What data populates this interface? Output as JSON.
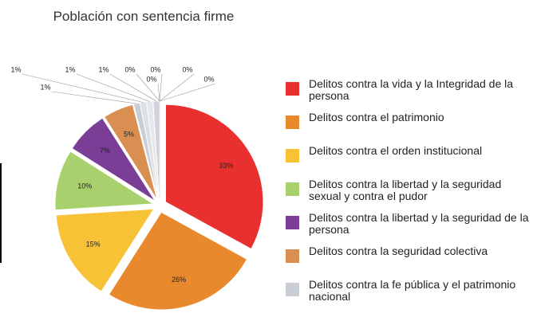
{
  "chart_data": {
    "type": "pie",
    "title": "Población con sentencia firme",
    "categories": [
      "Delitos contra la vida y la Integridad de la persona",
      "Delitos contra el patrimonio",
      "Delitos contra el orden institucional",
      "Delitos contra la libertad y la seguridad sexual y contra el pudor",
      "Delitos contra la libertad y la seguridad de la persona",
      "Delitos contra la seguridad colectiva",
      "Delitos contra la fe pública y el patrimonio nacional",
      null,
      null,
      null,
      null,
      null,
      null,
      null,
      null
    ],
    "values": [
      33,
      26,
      15,
      10,
      7,
      5,
      1,
      1,
      1,
      1,
      0,
      0,
      0,
      0,
      0
    ],
    "value_labels": [
      "33%",
      "26%",
      "15%",
      "10%",
      "7%",
      "5%",
      "1%",
      "1%",
      "1%",
      "1%",
      "0%",
      "0%",
      "0%",
      "0%",
      "0%"
    ],
    "colors": [
      "#e8312f",
      "#e8892e",
      "#f8c236",
      "#a8d06c",
      "#7a3e97",
      "#d98f52",
      "#c9cdd4",
      "#dcdfe4",
      "#e6e8ec",
      "#d0d4da",
      "#e2e4e8",
      "#d6d9de",
      "#e9ebee",
      "#dadde2",
      "#e4e6ea"
    ],
    "legend": "right"
  }
}
